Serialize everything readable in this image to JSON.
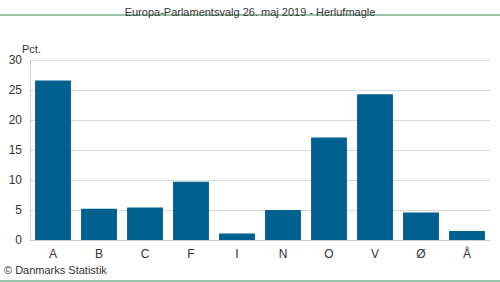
{
  "chart_data": {
    "type": "bar",
    "title": "Europa-Parlamentsvalg 26. maj 2019 - Herlufmagle",
    "ylabel": "Pct.",
    "categories": [
      "A",
      "B",
      "C",
      "F",
      "I",
      "N",
      "O",
      "V",
      "Ø",
      "Å"
    ],
    "values": [
      26.6,
      5.2,
      5.4,
      9.7,
      1.1,
      5.0,
      17.1,
      24.3,
      4.6,
      1.5
    ],
    "color": "#006090",
    "ylim": [
      0,
      30
    ],
    "yticks": [
      0,
      5,
      10,
      15,
      20,
      25,
      30
    ],
    "grid": true,
    "annotations": [
      "© Danmarks Statistik"
    ]
  }
}
